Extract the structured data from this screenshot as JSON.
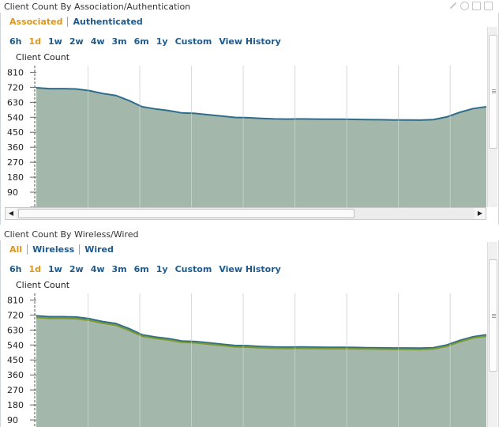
{
  "panel1": {
    "title": "Client Count By Association/Authentication",
    "filters": [
      {
        "label": "Associated",
        "active": true
      },
      {
        "label": "Authenticated",
        "active": false
      }
    ],
    "ranges": [
      {
        "label": "6h",
        "active": false
      },
      {
        "label": "1d",
        "active": true
      },
      {
        "label": "1w",
        "active": false
      },
      {
        "label": "2w",
        "active": false
      },
      {
        "label": "4w",
        "active": false
      },
      {
        "label": "3m",
        "active": false
      },
      {
        "label": "6m",
        "active": false
      },
      {
        "label": "1y",
        "active": false
      },
      {
        "label": "Custom",
        "active": false
      },
      {
        "label": "View History",
        "active": false
      }
    ],
    "chart_label": "Client Count",
    "chart_data": {
      "type": "area",
      "title": "",
      "ylabel": "Client Count",
      "xlabel": "",
      "ylim": [
        0,
        850
      ],
      "yticks": [
        0,
        90,
        180,
        270,
        360,
        450,
        540,
        630,
        720,
        810
      ],
      "grid": true,
      "series": [
        {
          "name": "",
          "color": "#2f6d8a",
          "values": [
            717,
            712,
            712,
            710,
            700,
            683,
            671,
            640,
            603,
            590,
            580,
            566,
            563,
            555,
            547,
            539,
            537,
            533,
            530,
            529,
            530,
            529,
            528,
            528,
            527,
            526,
            525,
            524,
            524,
            523,
            526,
            542,
            570,
            592,
            603
          ]
        }
      ]
    }
  },
  "panel2": {
    "title": "Client Count By Wireless/Wired",
    "filters": [
      {
        "label": "All",
        "active": true
      },
      {
        "label": "Wireless",
        "active": false
      },
      {
        "label": "Wired",
        "active": false
      }
    ],
    "ranges": [
      {
        "label": "6h",
        "active": false
      },
      {
        "label": "1d",
        "active": true
      },
      {
        "label": "1w",
        "active": false
      },
      {
        "label": "2w",
        "active": false
      },
      {
        "label": "4w",
        "active": false
      },
      {
        "label": "3m",
        "active": false
      },
      {
        "label": "6m",
        "active": false
      },
      {
        "label": "1y",
        "active": false
      },
      {
        "label": "Custom",
        "active": false
      },
      {
        "label": "View History",
        "active": false
      }
    ],
    "chart_label": "Client Count",
    "chart_data": {
      "type": "area",
      "title": "",
      "ylabel": "Client Count",
      "xlabel": "",
      "ylim": [
        0,
        850
      ],
      "yticks": [
        0,
        90,
        180,
        270,
        360,
        450,
        540,
        630,
        720,
        810
      ],
      "grid": true,
      "series": [
        {
          "name": "",
          "color": "#2f6d8a",
          "values": [
            715,
            710,
            710,
            708,
            698,
            681,
            669,
            638,
            601,
            588,
            578,
            564,
            561,
            553,
            545,
            537,
            535,
            531,
            528,
            527,
            528,
            527,
            526,
            526,
            525,
            524,
            523,
            522,
            522,
            521,
            524,
            540,
            568,
            590,
            601
          ]
        },
        {
          "name": "",
          "color": "#7a9a2e",
          "values": [
            705,
            700,
            700,
            698,
            688,
            671,
            659,
            628,
            593,
            580,
            570,
            556,
            553,
            545,
            537,
            529,
            527,
            523,
            520,
            519,
            520,
            519,
            518,
            518,
            517,
            516,
            515,
            514,
            514,
            513,
            516,
            532,
            560,
            582,
            593
          ]
        }
      ]
    }
  },
  "colors": {
    "accent": "#e0961c",
    "link": "#1e5a8c",
    "area_fill": "#a3b8aa",
    "grid": "#c8c8c8"
  }
}
